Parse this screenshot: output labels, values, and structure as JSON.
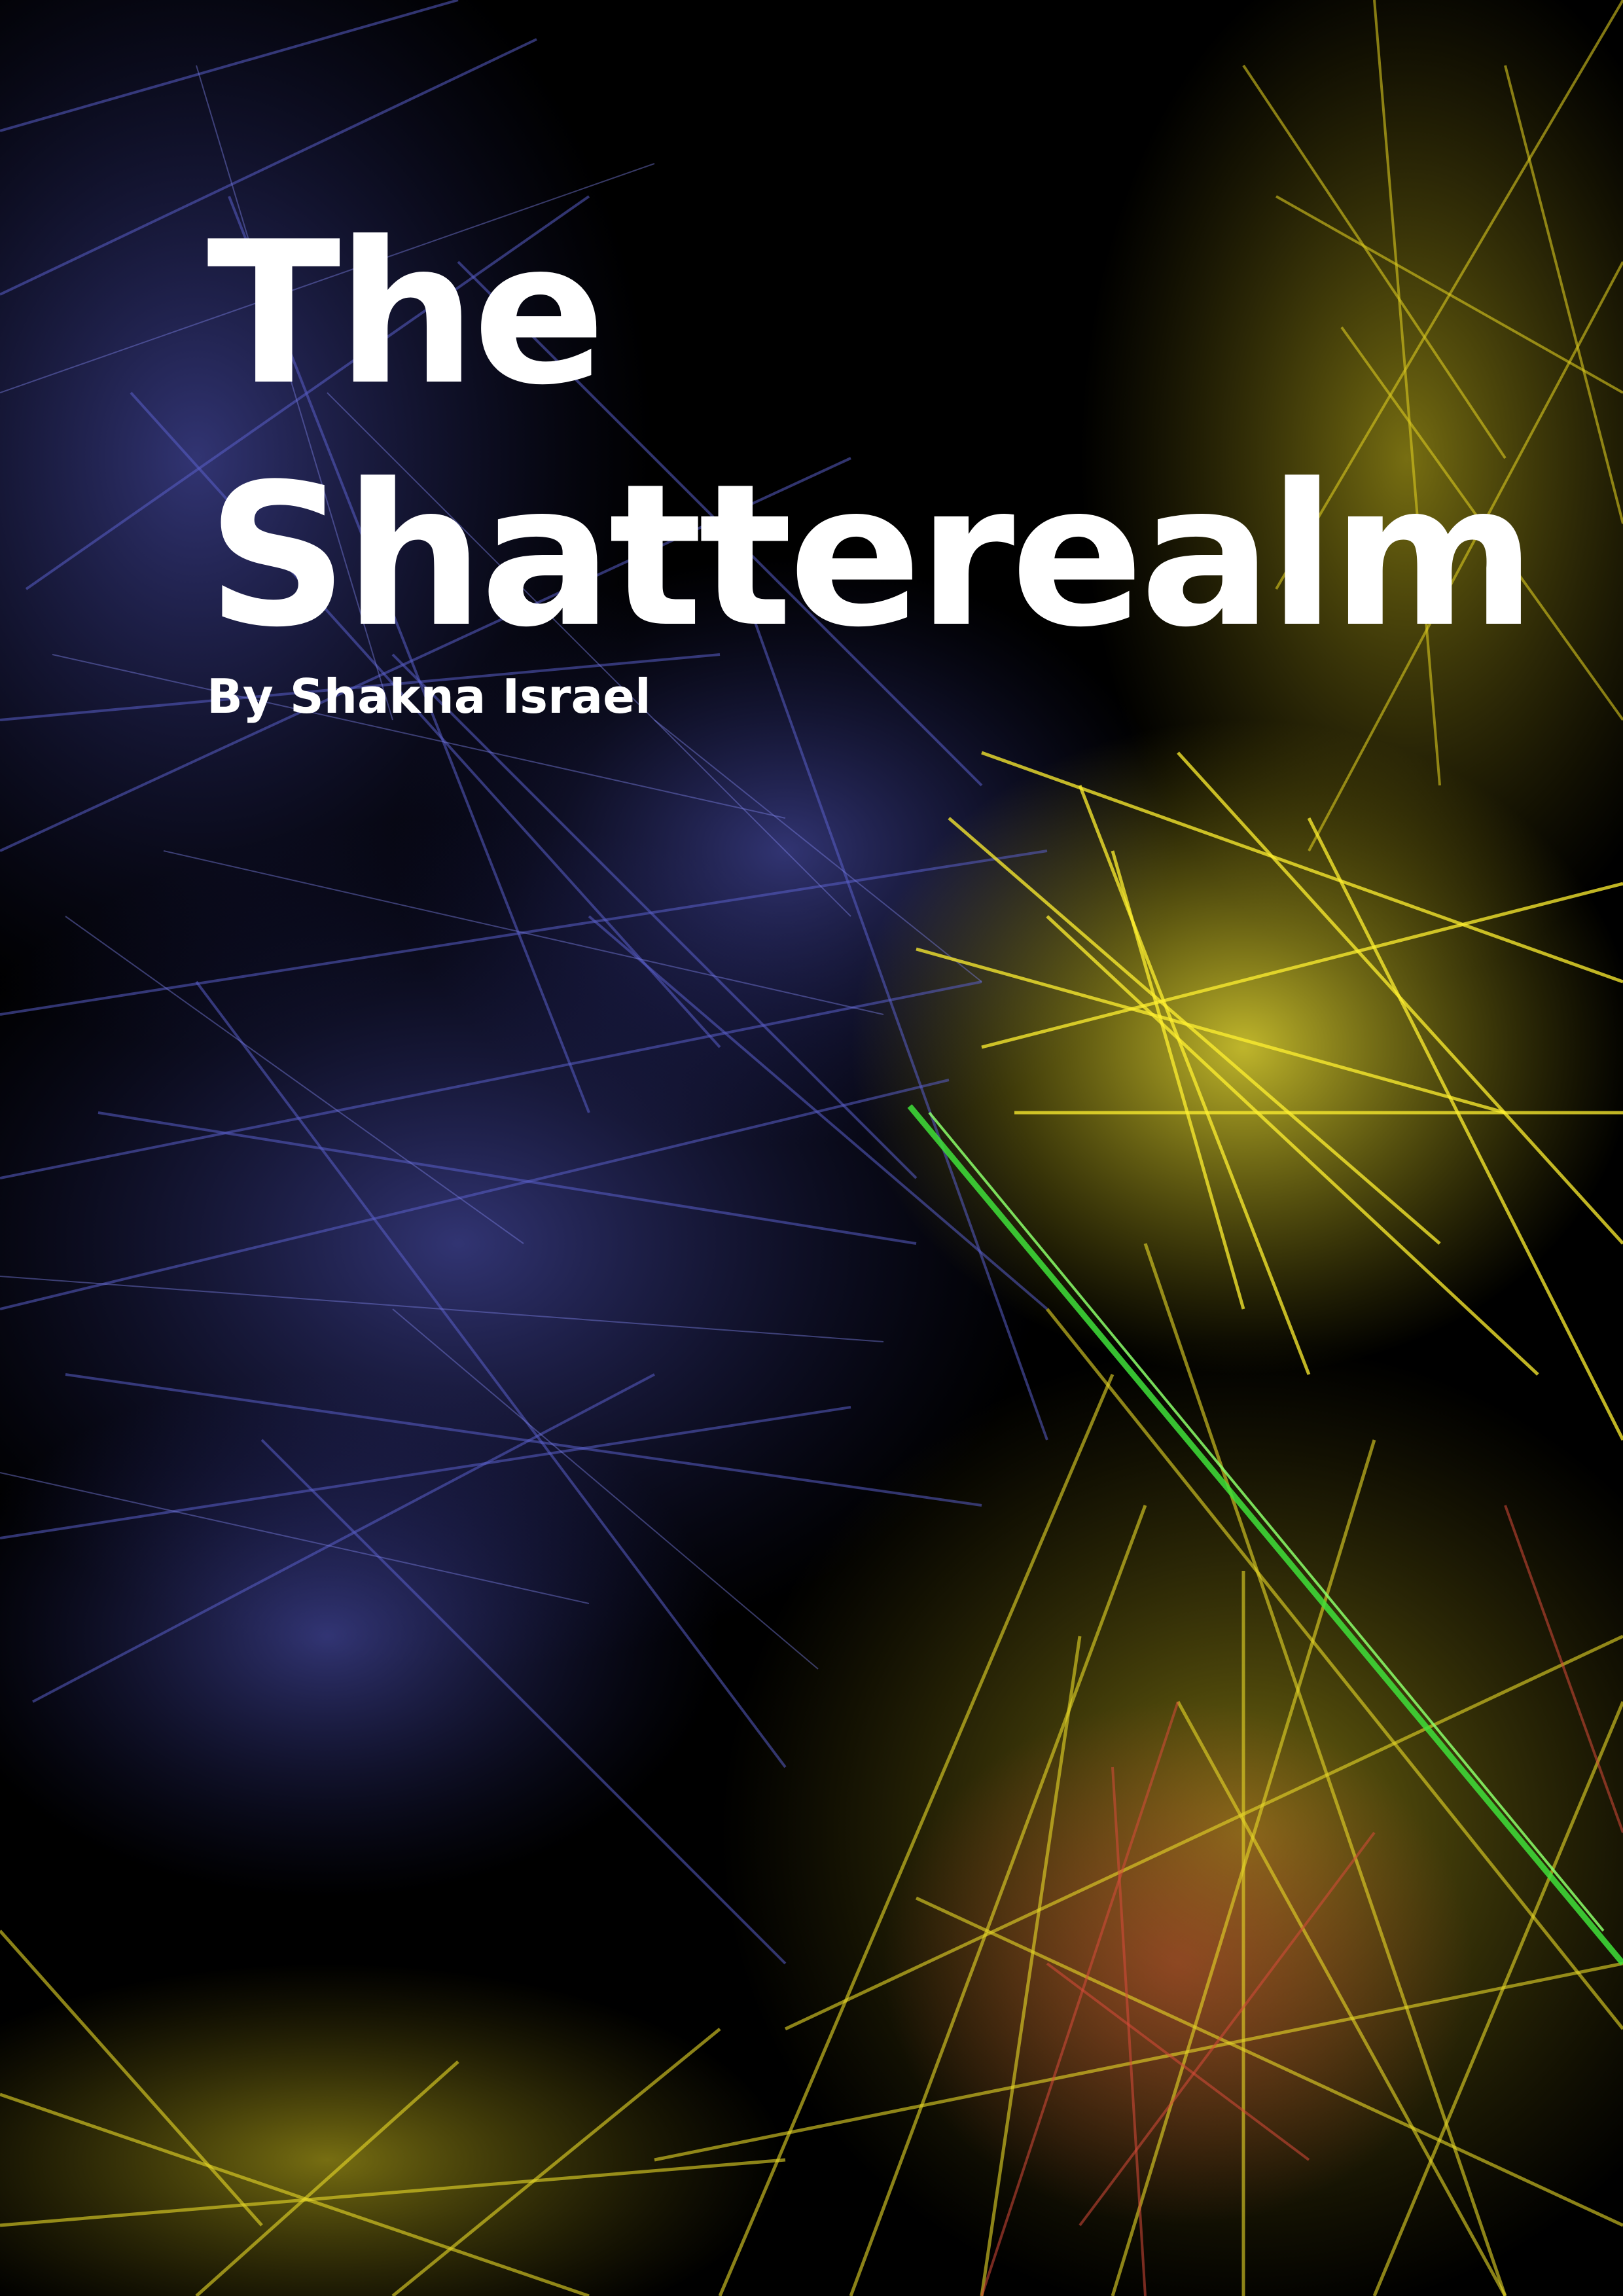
{
  "cover": {
    "title_line_1": "The",
    "title_line_2": "Shatterealm",
    "byline": "By Shakna Israel"
  },
  "colors": {
    "background": "#000000",
    "title_text": "#ffffff",
    "strands_blue": "#4b4fb8",
    "strands_yellow": "#f0e020",
    "strands_green": "#3fe03a",
    "strands_red": "#d84a3a"
  },
  "icons": {
    "artwork": "fractal-flame-artwork"
  }
}
